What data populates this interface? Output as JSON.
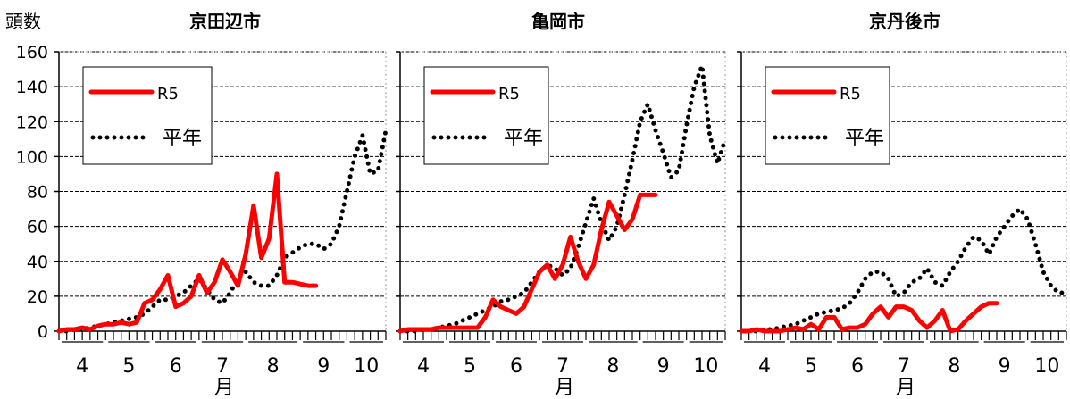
{
  "y_axis_label": "頭数",
  "x_axis_label": "月",
  "y_ticks": [
    "0",
    "20",
    "40",
    "60",
    "80",
    "100",
    "120",
    "140",
    "160"
  ],
  "month_ticks": [
    "4",
    "5",
    "6",
    "7",
    "8",
    "9",
    "10"
  ],
  "legend": {
    "current_label": "R5",
    "normal_label": "平年",
    "current_color": "#ff0000",
    "normal_color": "#000000"
  },
  "chart_data": [
    {
      "type": "line",
      "title": "京田辺市",
      "ylim": [
        0,
        160
      ],
      "x_unit": "半旬 (Apr 1 – Oct 31)",
      "xlim": [
        0,
        42
      ],
      "grid": true,
      "legend_position": "top-left",
      "series": [
        {
          "name": "R5",
          "style": "solid",
          "color": "#ff0000",
          "x": [
            0,
            1,
            2,
            3,
            4,
            5,
            6,
            7,
            8,
            9,
            10,
            11,
            12,
            13,
            14,
            15,
            16,
            17,
            18,
            19,
            20,
            21,
            22,
            23,
            24,
            25,
            26,
            27,
            28,
            29,
            30,
            31,
            32,
            33
          ],
          "values": [
            0,
            1,
            1,
            2,
            1,
            3,
            4,
            4,
            5,
            4,
            5,
            16,
            18,
            24,
            32,
            14,
            16,
            20,
            32,
            22,
            28,
            41,
            34,
            26,
            44,
            72,
            42,
            53,
            90,
            28,
            28,
            27,
            26,
            26
          ]
        },
        {
          "name": "平年",
          "style": "dotted",
          "color": "#000000",
          "x": [
            0,
            1,
            2,
            3,
            4,
            5,
            6,
            7,
            8,
            9,
            10,
            11,
            12,
            13,
            14,
            15,
            16,
            17,
            18,
            19,
            20,
            21,
            22,
            23,
            24,
            25,
            26,
            27,
            28,
            29,
            30,
            31,
            32,
            33,
            34,
            35,
            36,
            37,
            38,
            39,
            40,
            41,
            42
          ],
          "values": [
            0,
            0,
            1,
            1,
            2,
            3,
            4,
            5,
            6,
            7,
            8,
            10,
            14,
            18,
            18,
            20,
            22,
            26,
            30,
            24,
            18,
            16,
            22,
            30,
            34,
            28,
            26,
            26,
            32,
            42,
            45,
            48,
            50,
            50,
            47,
            50,
            60,
            80,
            100,
            112,
            90,
            92,
            115
          ]
        }
      ]
    },
    {
      "type": "line",
      "title": "亀岡市",
      "ylim": [
        0,
        160
      ],
      "x_unit": "半旬 (Apr 1 – Oct 31)",
      "xlim": [
        0,
        42
      ],
      "grid": true,
      "legend_position": "top-left",
      "series": [
        {
          "name": "R5",
          "style": "solid",
          "color": "#ff0000",
          "x": [
            0,
            1,
            2,
            3,
            4,
            5,
            6,
            7,
            8,
            9,
            10,
            11,
            12,
            13,
            14,
            15,
            16,
            17,
            18,
            19,
            20,
            21,
            22,
            23,
            24,
            25,
            26,
            27,
            28,
            29,
            30,
            31,
            32,
            33
          ],
          "values": [
            0,
            1,
            1,
            1,
            1,
            2,
            2,
            2,
            2,
            2,
            2,
            8,
            18,
            14,
            12,
            10,
            14,
            24,
            34,
            38,
            30,
            38,
            54,
            40,
            30,
            38,
            58,
            74,
            66,
            58,
            64,
            78,
            78,
            78
          ]
        },
        {
          "name": "平年",
          "style": "dotted",
          "color": "#000000",
          "x": [
            0,
            1,
            2,
            3,
            4,
            5,
            6,
            7,
            8,
            9,
            10,
            11,
            12,
            13,
            14,
            15,
            16,
            17,
            18,
            19,
            20,
            21,
            22,
            23,
            24,
            25,
            26,
            27,
            28,
            29,
            30,
            31,
            32,
            33,
            34,
            35,
            36,
            37,
            38,
            39,
            40,
            41,
            42
          ],
          "values": [
            0,
            0,
            0,
            1,
            1,
            2,
            3,
            4,
            6,
            8,
            10,
            12,
            14,
            17,
            18,
            20,
            22,
            28,
            34,
            38,
            36,
            32,
            36,
            48,
            62,
            76,
            62,
            52,
            60,
            78,
            98,
            120,
            130,
            115,
            102,
            88,
            92,
            118,
            140,
            152,
            112,
            96,
            110
          ]
        }
      ]
    },
    {
      "type": "line",
      "title": "京丹後市",
      "ylim": [
        0,
        160
      ],
      "x_unit": "半旬 (Apr 1 – Oct 31)",
      "xlim": [
        0,
        42
      ],
      "grid": true,
      "legend_position": "top-left",
      "series": [
        {
          "name": "R5",
          "style": "solid",
          "color": "#ff0000",
          "x": [
            0,
            1,
            2,
            3,
            4,
            5,
            6,
            7,
            8,
            9,
            10,
            11,
            12,
            13,
            14,
            15,
            16,
            17,
            18,
            19,
            20,
            21,
            22,
            23,
            24,
            25,
            26,
            27,
            28,
            29,
            30,
            31,
            32,
            33
          ],
          "values": [
            0,
            0,
            1,
            0,
            0,
            0,
            1,
            2,
            1,
            4,
            1,
            8,
            8,
            1,
            2,
            2,
            4,
            10,
            14,
            8,
            14,
            14,
            12,
            6,
            2,
            6,
            12,
            0,
            1,
            6,
            10,
            14,
            16,
            16
          ]
        },
        {
          "name": "平年",
          "style": "dotted",
          "color": "#000000",
          "x": [
            0,
            1,
            2,
            3,
            4,
            5,
            6,
            7,
            8,
            9,
            10,
            11,
            12,
            13,
            14,
            15,
            16,
            17,
            18,
            19,
            20,
            21,
            22,
            23,
            24,
            25,
            26,
            27,
            28,
            29,
            30,
            31,
            32,
            33,
            34,
            35,
            36,
            37,
            38,
            39,
            40,
            41,
            42
          ],
          "values": [
            0,
            0,
            0,
            1,
            1,
            2,
            3,
            4,
            6,
            8,
            10,
            11,
            12,
            13,
            16,
            22,
            30,
            34,
            34,
            30,
            20,
            22,
            28,
            30,
            36,
            28,
            26,
            34,
            40,
            48,
            54,
            52,
            44,
            54,
            60,
            66,
            70,
            64,
            50,
            34,
            26,
            22,
            22
          ]
        }
      ]
    }
  ]
}
